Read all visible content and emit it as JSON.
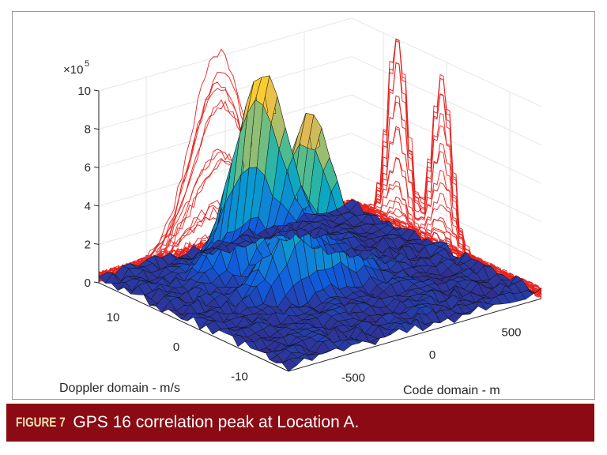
{
  "chart_data": {
    "type": "surface",
    "title": "",
    "xlabel": "Code domain - m",
    "ylabel": "Doppler domain - m/s",
    "zlabel": "",
    "z_multiplier": "×10",
    "z_exponent": "5",
    "xlim": [
      -800,
      800
    ],
    "ylim": [
      -15,
      15
    ],
    "zlim": [
      0,
      10
    ],
    "x_ticks": [
      "-500",
      "0",
      "500"
    ],
    "x_tick_values": [
      -500,
      0,
      500
    ],
    "y_ticks": [
      "10",
      "0",
      "-10"
    ],
    "y_tick_values": [
      10,
      0,
      -10
    ],
    "z_ticks": [
      "0",
      "2",
      "4",
      "6",
      "8",
      "10"
    ],
    "z_tick_values": [
      0,
      2,
      4,
      6,
      8,
      10
    ],
    "grid": true,
    "colormap": "parula",
    "projection_color": "#e8231f",
    "peaks": [
      {
        "code": -50,
        "doppler": 8,
        "value": 9.9
      },
      {
        "code": -30,
        "doppler": 1,
        "value": 8.7
      }
    ],
    "noise_floor": 0.6
  },
  "caption": {
    "number": "FIGURE 7",
    "text": "GPS 16 correlation peak at Location A.",
    "bar_color": "#8b0a14"
  }
}
